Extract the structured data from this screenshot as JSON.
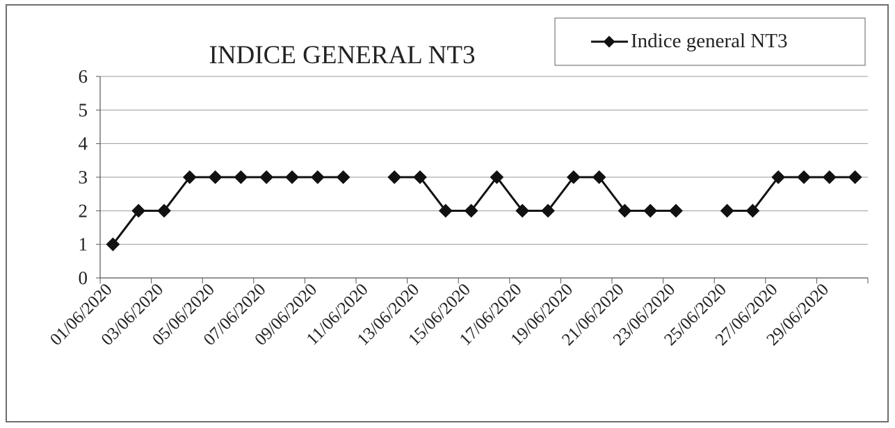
{
  "chart_data": {
    "type": "line",
    "title": "INDICE GENERAL NT3",
    "legend": {
      "position": "top-right",
      "entries": [
        "Indice general NT3"
      ]
    },
    "xlabel": "",
    "ylabel": "",
    "ylim": [
      0,
      6
    ],
    "yticks": [
      "0",
      "1",
      "2",
      "3",
      "4",
      "5",
      "6"
    ],
    "grid": true,
    "line_color": "#111111",
    "grid_color": "#9a9a9a",
    "categories": [
      "01/06/2020",
      "02/06/2020",
      "03/06/2020",
      "04/06/2020",
      "05/06/2020",
      "06/06/2020",
      "07/06/2020",
      "08/06/2020",
      "09/06/2020",
      "10/06/2020",
      "11/06/2020",
      "12/06/2020",
      "13/06/2020",
      "14/06/2020",
      "15/06/2020",
      "16/06/2020",
      "17/06/2020",
      "18/06/2020",
      "19/06/2020",
      "20/06/2020",
      "21/06/2020",
      "22/06/2020",
      "23/06/2020",
      "24/06/2020",
      "25/06/2020",
      "26/06/2020",
      "27/06/2020",
      "28/06/2020",
      "29/06/2020",
      "30/06/2020"
    ],
    "x_tick_labels": [
      "01/06/2020",
      "03/06/2020",
      "05/06/2020",
      "07/06/2020",
      "09/06/2020",
      "11/06/2020",
      "13/06/2020",
      "15/06/2020",
      "17/06/2020",
      "19/06/2020",
      "21/06/2020",
      "23/06/2020",
      "25/06/2020",
      "27/06/2020",
      "29/06/2020"
    ],
    "series": [
      {
        "name": "Indice general NT3",
        "values": [
          1,
          2,
          2,
          3,
          3,
          3,
          3,
          3,
          3,
          3,
          null,
          3,
          3,
          2,
          2,
          3,
          2,
          2,
          3,
          3,
          2,
          2,
          2,
          null,
          2,
          2,
          3,
          3,
          3,
          3
        ]
      }
    ]
  }
}
